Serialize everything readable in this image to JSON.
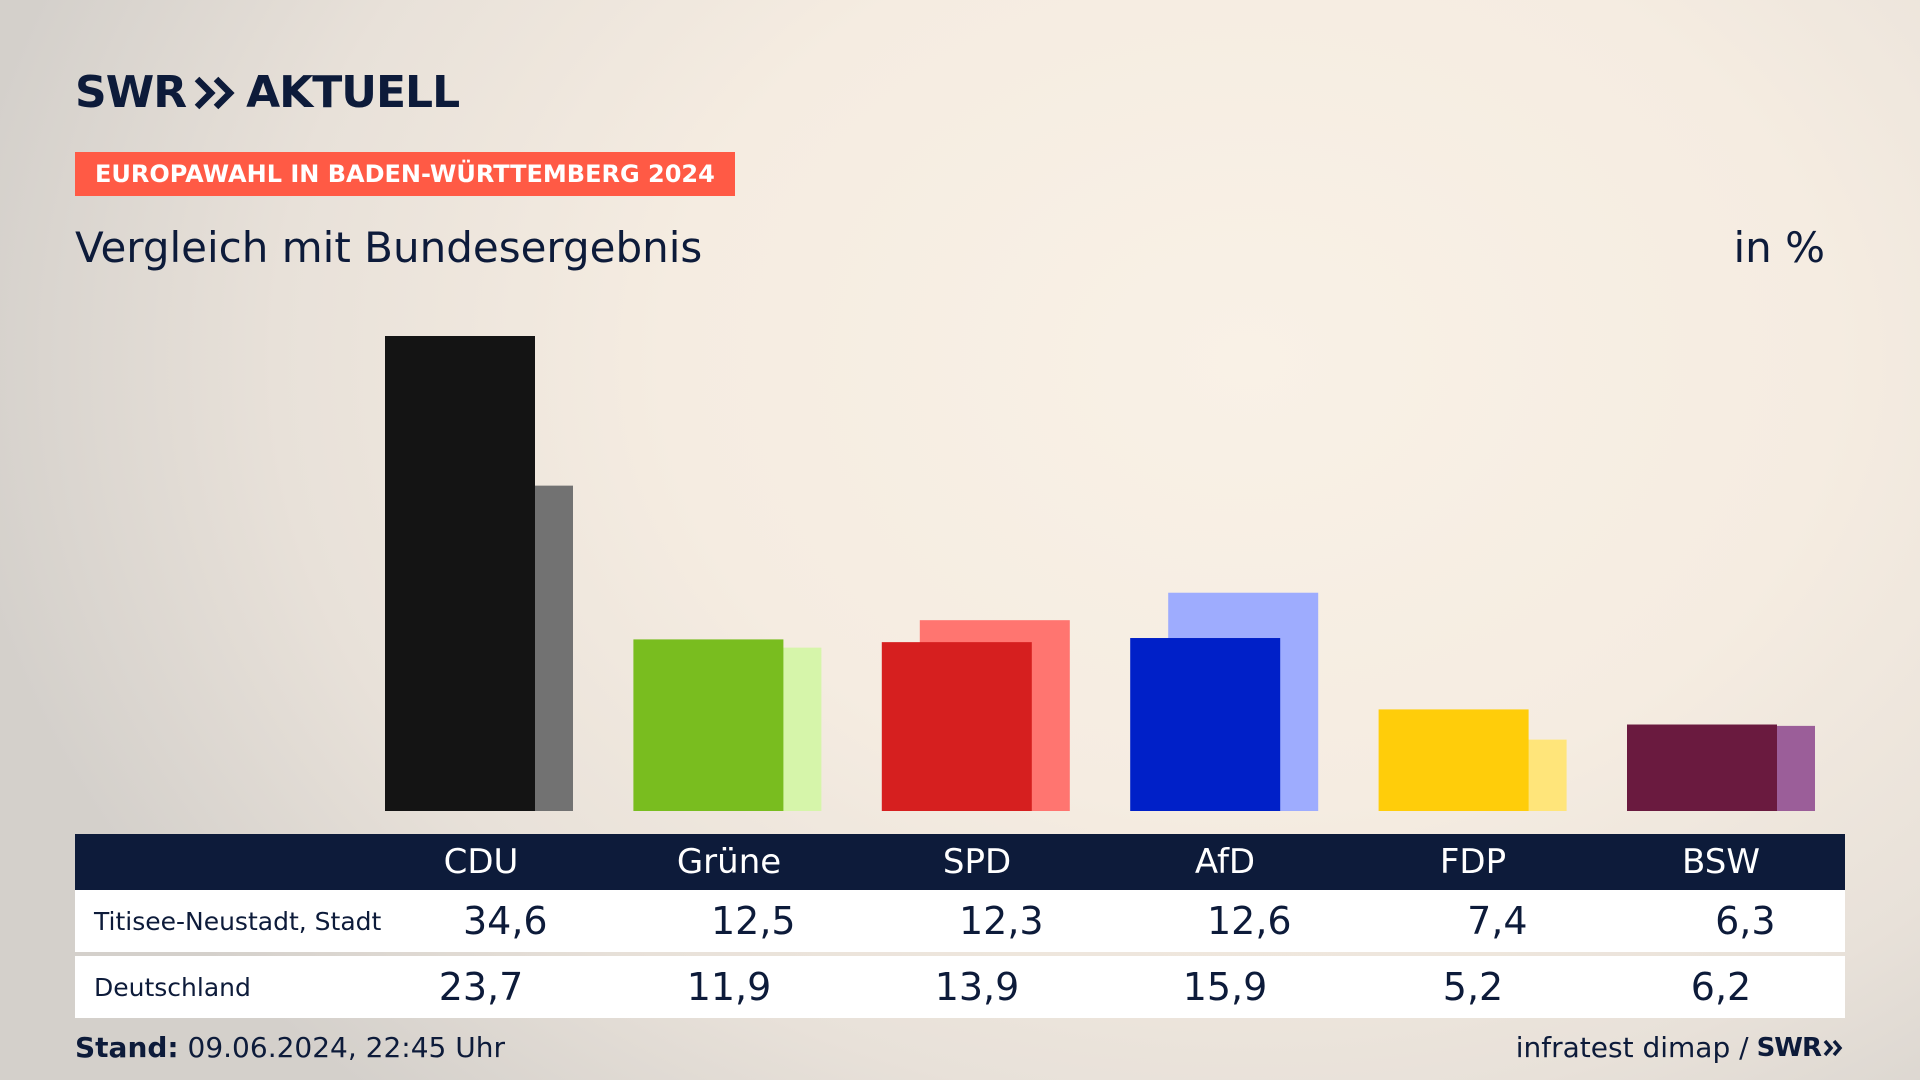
{
  "brand": {
    "logo_name": "SWR",
    "logo_suffix": "AKTUELL"
  },
  "badge": {
    "text": "EUROPAWAHL IN BADEN-WÜRTTEMBERG 2024",
    "color": "#ff5a45"
  },
  "subtitle": "Vergleich mit Bundesergebnis",
  "unit": "in %",
  "table": {
    "rows": [
      {
        "label": "Titisee-Neustadt, Stadt",
        "values": [
          "34,6",
          "12,5",
          "12,3",
          "12,6",
          "7,4",
          "6,3"
        ]
      },
      {
        "label": "Deutschland",
        "values": [
          "23,7",
          "11,9",
          "13,9",
          "15,9",
          "5,2",
          "6,2"
        ]
      }
    ]
  },
  "footer": {
    "stand_label": "Stand:",
    "stand_value": "09.06.2024, 22:45 Uhr",
    "source": "infratest dimap /",
    "source_logo": "SWR"
  },
  "chart_data": {
    "type": "bar",
    "categories": [
      "CDU",
      "Grüne",
      "SPD",
      "AfD",
      "FDP",
      "BSW"
    ],
    "series": [
      {
        "name": "Titisee-Neustadt, Stadt",
        "values": [
          34.6,
          12.5,
          12.3,
          12.6,
          7.4,
          6.3
        ]
      },
      {
        "name": "Deutschland",
        "values": [
          23.7,
          11.9,
          13.9,
          15.9,
          5.2,
          6.2
        ]
      }
    ],
    "colors": {
      "local": [
        "#141414",
        "#79bd1f",
        "#d61f1f",
        "#0020c8",
        "#ffcd0a",
        "#6a1a3f"
      ],
      "national": [
        "#727272",
        "#d6f5aa",
        "#ff7570",
        "#9eacfe",
        "#ffe57a",
        "#9b5e99"
      ]
    },
    "ylim": [
      0,
      34.6
    ],
    "grid": false,
    "title": "",
    "xlabel": "",
    "ylabel": "in %"
  }
}
